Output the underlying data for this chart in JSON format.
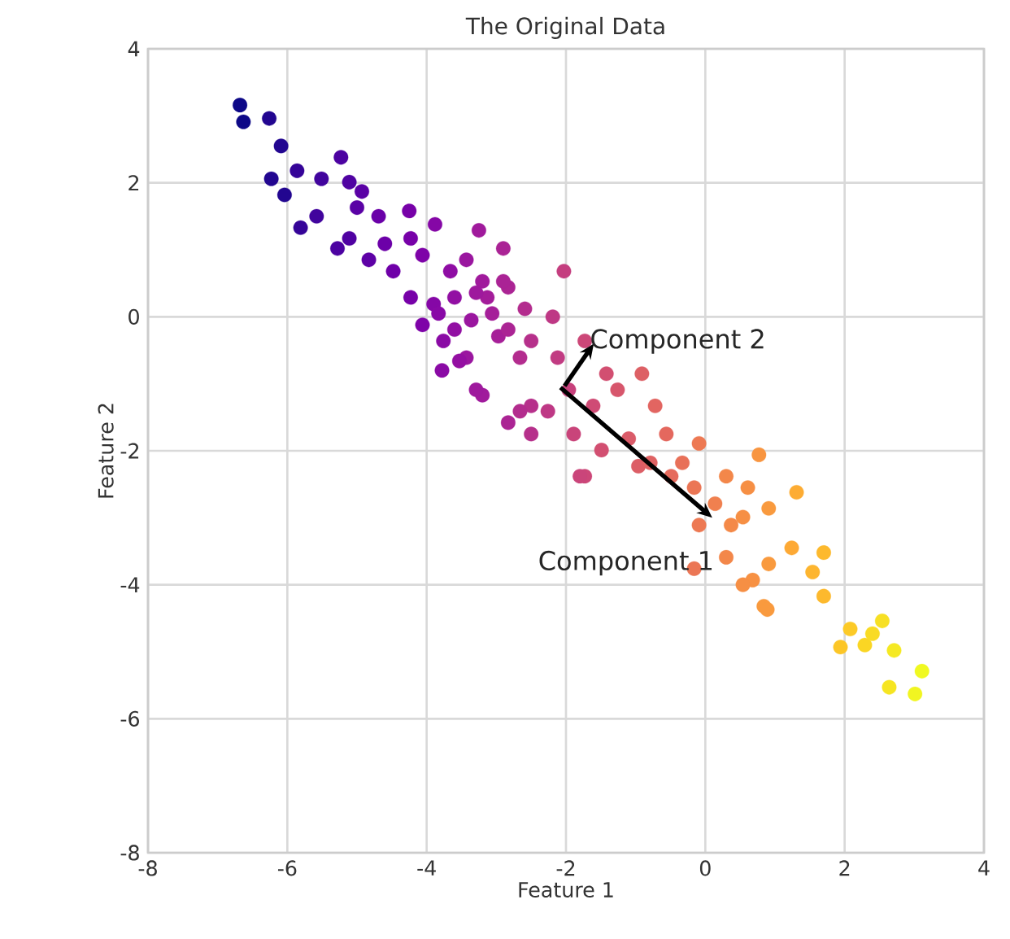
{
  "chart_data": {
    "type": "scatter",
    "title": "The Original Data",
    "xlabel": "Feature 1",
    "ylabel": "Feature 2",
    "xlim": [
      -8,
      4
    ],
    "ylim": [
      -8,
      4
    ],
    "xticks": [
      -8,
      -6,
      -4,
      -2,
      0,
      2,
      4
    ],
    "yticks": [
      -8,
      -6,
      -4,
      -2,
      0,
      2,
      4
    ],
    "grid": true,
    "marker": "circle",
    "annotations": [
      {
        "text": "Component 1",
        "x": 0.1,
        "y": -3
      },
      {
        "text": "Component 2",
        "x": -1.6,
        "y": -0.4
      }
    ],
    "x": [
      -6.68,
      -6.63,
      -6.26,
      -6.09,
      -5.86,
      -6.23,
      -6.04,
      -5.51,
      -5.23,
      -5.11,
      -4.93,
      -5.0,
      -4.69,
      -4.25,
      -3.88,
      -3.25,
      -2.9,
      -5.81,
      -5.58,
      -5.28,
      -5.11,
      -4.83,
      -4.6,
      -4.48,
      -4.23,
      -4.06,
      -3.66,
      -3.43,
      -3.2,
      -2.83,
      -2.59,
      -4.23,
      -3.9,
      -3.6,
      -3.36,
      -4.06,
      -3.76,
      -3.43,
      -3.78,
      -3.53,
      -3.2,
      -2.83,
      -2.5,
      -2.97,
      -2.66,
      -3.13,
      -2.03,
      -2.19,
      -1.73,
      -1.42,
      -3.29,
      -2.5,
      -1.73,
      -1.49,
      -1.1,
      -0.72,
      -0.56,
      -0.96,
      -0.49,
      -0.09,
      -0.16,
      0.3,
      0.77,
      0.61,
      0.91,
      1.31,
      0.37,
      -0.09,
      0.3,
      -0.16,
      0.68,
      0.91,
      1.24,
      1.7,
      1.54,
      1.7,
      0.84,
      0.54,
      -2.26,
      -1.89,
      -1.8,
      -2.66,
      -2.12,
      -2.5,
      -3.06,
      -2.83,
      -3.83,
      -3.6,
      -3.29,
      -2.9,
      2.08,
      2.54,
      1.94,
      2.29,
      2.71,
      3.11,
      2.64,
      3.01,
      2.4,
      0.89,
      -1.26,
      -0.91,
      -1.61,
      -1.96,
      -0.79,
      -0.33,
      0.14,
      0.54
    ],
    "values": [
      3.16,
      2.91,
      2.96,
      2.55,
      2.18,
      2.06,
      1.82,
      2.06,
      2.38,
      2.01,
      1.87,
      1.63,
      1.5,
      1.58,
      1.38,
      1.29,
      1.02,
      1.33,
      1.5,
      1.02,
      1.17,
      0.85,
      1.09,
      0.68,
      1.17,
      0.92,
      0.68,
      0.85,
      0.53,
      0.44,
      0.12,
      0.29,
      0.19,
      0.29,
      -0.05,
      -0.12,
      -0.36,
      -0.61,
      -0.8,
      -0.66,
      -1.17,
      -1.58,
      -1.33,
      -0.29,
      -0.61,
      0.29,
      0.68,
      0.0,
      -0.36,
      -0.85,
      -1.09,
      -1.75,
      -2.38,
      -1.99,
      -1.82,
      -1.33,
      -1.75,
      -2.23,
      -2.38,
      -1.89,
      -2.55,
      -2.38,
      -2.06,
      -2.55,
      -2.86,
      -2.62,
      -3.11,
      -3.11,
      -3.59,
      -3.76,
      -3.93,
      -3.69,
      -3.45,
      -3.52,
      -3.81,
      -4.17,
      -4.32,
      -4.0,
      -1.41,
      -1.75,
      -2.38,
      -1.41,
      -0.61,
      -0.36,
      0.05,
      -0.19,
      0.05,
      -0.19,
      0.36,
      0.53,
      -4.66,
      -4.54,
      -4.93,
      -4.9,
      -4.98,
      -5.29,
      -5.53,
      -5.63,
      -4.73,
      -4.37,
      -1.09,
      -0.85,
      -1.33,
      -1.09,
      -2.18,
      -2.18,
      -2.79,
      -2.99
    ],
    "colors": [
      "#0d0887",
      "#0d0887",
      "#220690",
      "#220690",
      "#350498",
      "#220690",
      "#220690",
      "#41049d",
      "#4c02a1",
      "#5002a2",
      "#5a01a5",
      "#5a01a5",
      "#6a00a8",
      "#7701a8",
      "#8507a6",
      "#a01a9c",
      "#aa2395",
      "#350498",
      "#41049d",
      "#4c02a1",
      "#5002a2",
      "#5e01a6",
      "#6c00a8",
      "#6f00a8",
      "#7701a8",
      "#7e03a8",
      "#8f0da4",
      "#9a169f",
      "#a01a9c",
      "#ab2494",
      "#b32c8e",
      "#7701a8",
      "#8507a6",
      "#920fa3",
      "#9a169f",
      "#7e03a8",
      "#8a0aa5",
      "#9a169f",
      "#8a0aa5",
      "#940fa2",
      "#a01a9c",
      "#ab2494",
      "#b6308b",
      "#a61f98",
      "#b32c8e",
      "#a31c9a",
      "#c43e7f",
      "#be3885",
      "#cc4778",
      "#d24f71",
      "#9e199d",
      "#b6308b",
      "#cc4778",
      "#d24f71",
      "#da5b69",
      "#e26561",
      "#e4685e",
      "#dc5e66",
      "#e56b5d",
      "#ed7953",
      "#eb7655",
      "#f3874a",
      "#f89540",
      "#f68f44",
      "#f99a3e",
      "#fdac33",
      "#f48948",
      "#ed7953",
      "#f3874a",
      "#eb7655",
      "#f79143",
      "#f99a3e",
      "#fda935",
      "#fdb92d",
      "#fdb52f",
      "#fdb92d",
      "#f99a3e",
      "#f68f44",
      "#be3885",
      "#c9447a",
      "#ca457a",
      "#b32c8e",
      "#c13b82",
      "#b6308b",
      "#a51f99",
      "#ab2494",
      "#8808a6",
      "#920fa3",
      "#9e199d",
      "#aa2395",
      "#fcca27",
      "#f7e024",
      "#fcc627",
      "#fad624",
      "#f5e923",
      "#f0f921",
      "#f6e522",
      "#f1f521",
      "#f9db24",
      "#f99a3e",
      "#d7566c",
      "#dd6065",
      "#cf4b75",
      "#c7417c",
      "#df6263",
      "#e87058",
      "#f0804f",
      "#f68f44"
    ]
  }
}
